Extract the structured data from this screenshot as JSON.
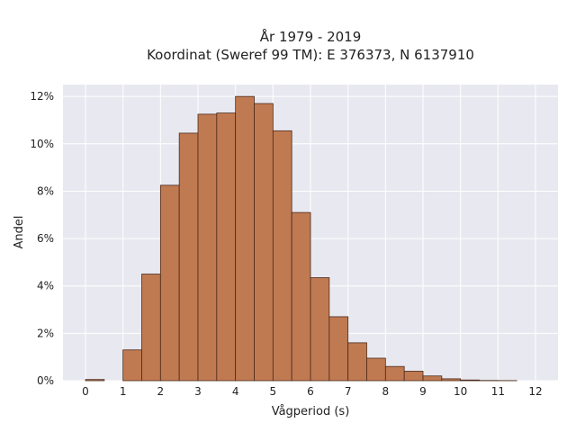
{
  "chart_data": {
    "type": "bar",
    "title": "År 1979 - 2019",
    "subtitle": "Koordinat (Sweref 99 TM): E 376373, N 6137910",
    "xlabel": "Vågperiod (s)",
    "ylabel": "Andel",
    "x_ticks": [
      0,
      1,
      2,
      3,
      4,
      5,
      6,
      7,
      8,
      9,
      10,
      11,
      12
    ],
    "x_tick_labels": [
      "0",
      "1",
      "2",
      "3",
      "4",
      "5",
      "6",
      "7",
      "8",
      "9",
      "10",
      "11",
      "12"
    ],
    "y_ticks": [
      0,
      2,
      4,
      6,
      8,
      10,
      12
    ],
    "y_tick_labels": [
      "0%",
      "2%",
      "4%",
      "6%",
      "8%",
      "10%",
      "12%"
    ],
    "xlim": [
      -0.6,
      12.6
    ],
    "ylim": [
      0,
      12.5
    ],
    "bin_width": 0.5,
    "bins": [
      {
        "x0": 0.0,
        "value": 0.05
      },
      {
        "x0": 1.0,
        "value": 1.3
      },
      {
        "x0": 1.5,
        "value": 4.5
      },
      {
        "x0": 2.0,
        "value": 8.25
      },
      {
        "x0": 2.5,
        "value": 10.45
      },
      {
        "x0": 3.0,
        "value": 11.25
      },
      {
        "x0": 3.5,
        "value": 11.3
      },
      {
        "x0": 4.0,
        "value": 12.0
      },
      {
        "x0": 4.5,
        "value": 11.7
      },
      {
        "x0": 5.0,
        "value": 10.55
      },
      {
        "x0": 5.5,
        "value": 7.1
      },
      {
        "x0": 6.0,
        "value": 4.35
      },
      {
        "x0": 6.5,
        "value": 2.7
      },
      {
        "x0": 7.0,
        "value": 1.6
      },
      {
        "x0": 7.5,
        "value": 0.95
      },
      {
        "x0": 8.0,
        "value": 0.6
      },
      {
        "x0": 8.5,
        "value": 0.4
      },
      {
        "x0": 9.0,
        "value": 0.2
      },
      {
        "x0": 9.5,
        "value": 0.08
      },
      {
        "x0": 10.0,
        "value": 0.03
      },
      {
        "x0": 10.5,
        "value": 0.01
      },
      {
        "x0": 11.0,
        "value": 0.005
      }
    ],
    "grid": true,
    "legend": "none",
    "colors": {
      "bar_fill": "#c07a52",
      "bar_stroke": "#4a2a1a",
      "plot_bg": "#e8e8f0",
      "grid": "#ffffff"
    }
  }
}
